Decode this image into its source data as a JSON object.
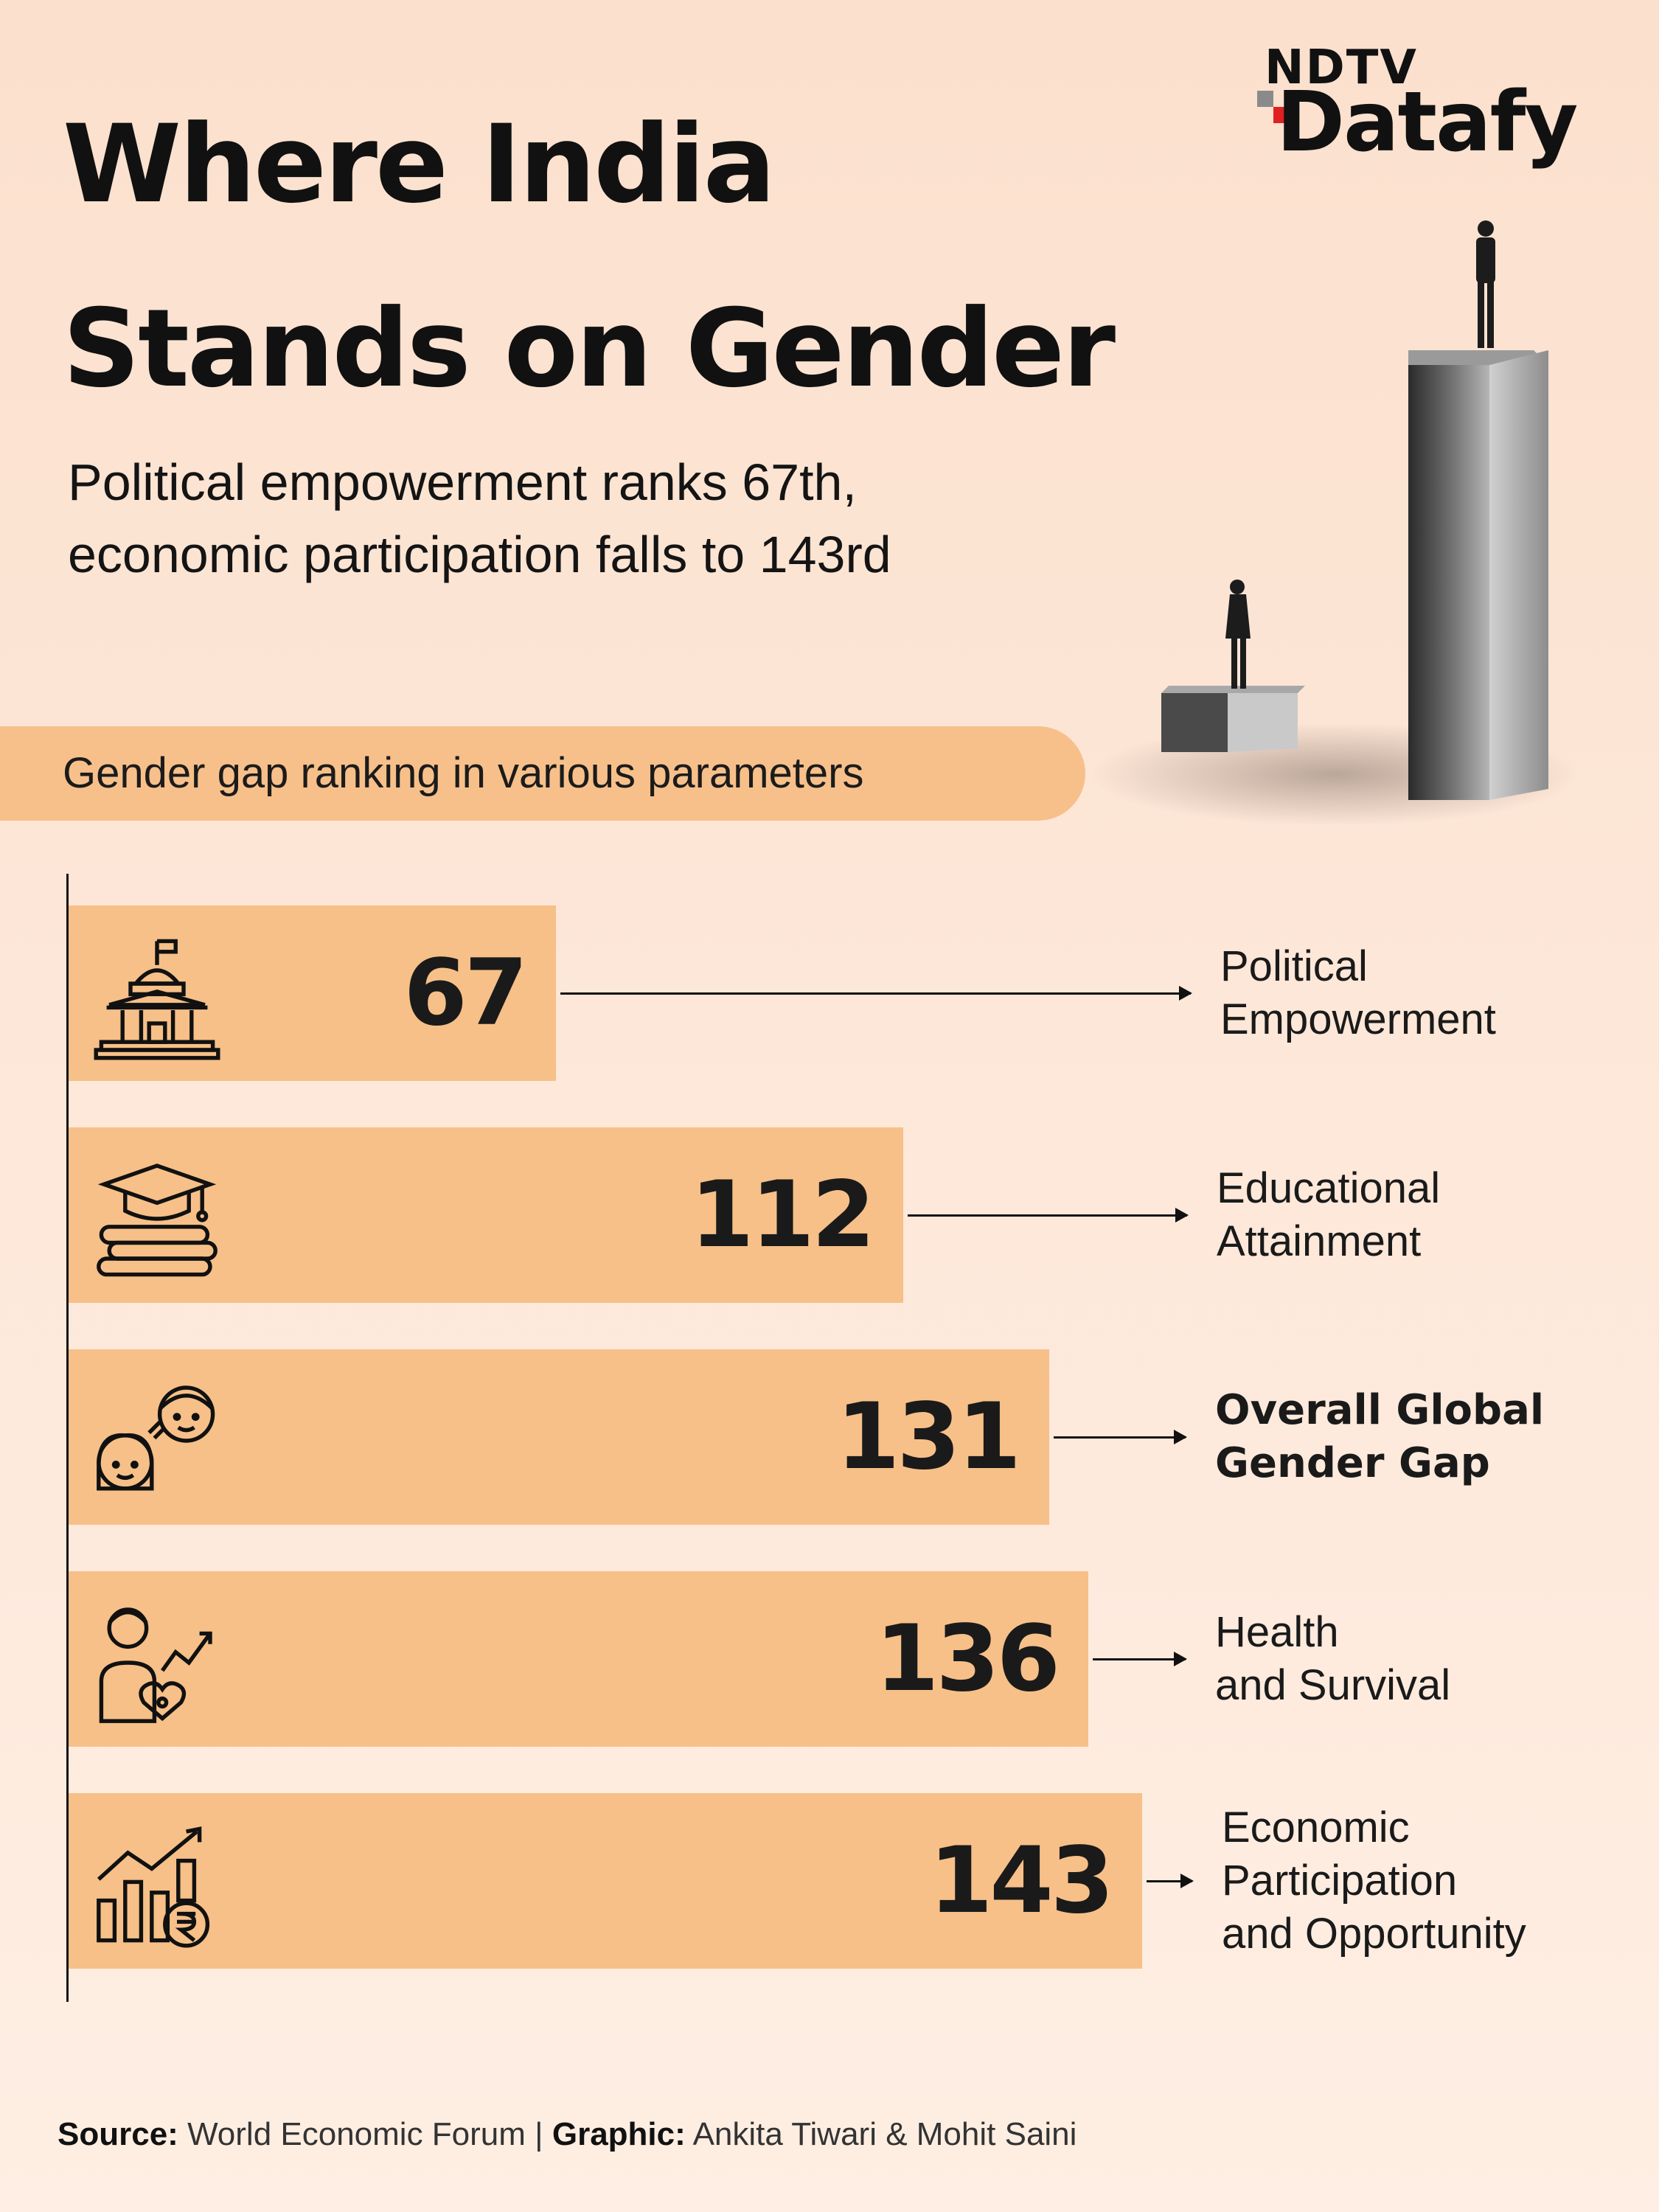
{
  "logo": {
    "top": "NDTV",
    "bottom": "Datafy"
  },
  "title": {
    "line1": "Where India",
    "line2": "Stands on Gender"
  },
  "subtitle": {
    "line1": "Political empowerment ranks 67th,",
    "line2": "economic participation falls to 143rd"
  },
  "section_label": "Gender gap ranking in various parameters",
  "chart_data": {
    "type": "bar",
    "orientation": "horizontal",
    "categories": [
      "Political Empowerment",
      "Educational Attainment",
      "Overall Global Gender Gap",
      "Health and Survival",
      "Economic Participation and Opportunity"
    ],
    "values": [
      67,
      112,
      131,
      136,
      143
    ],
    "bars": [
      {
        "value": "67",
        "label_lines": [
          "Political",
          "Empowerment"
        ],
        "icon": "government-building-icon",
        "bold": false
      },
      {
        "value": "112",
        "label_lines": [
          "Educational",
          "Attainment"
        ],
        "icon": "graduation-cap-books-icon",
        "bold": false
      },
      {
        "value": "131",
        "label_lines": [
          "Overall Global",
          "Gender Gap"
        ],
        "icon": "girl-boy-faces-icon",
        "bold": true
      },
      {
        "value": "136",
        "label_lines": [
          "Health",
          "and Survival"
        ],
        "icon": "person-heart-icon",
        "bold": false
      },
      {
        "value": "143",
        "label_lines": [
          "Economic",
          "Participation",
          "and Opportunity"
        ],
        "icon": "bar-chart-rupee-icon",
        "bold": false
      }
    ],
    "bar_color": "#f6c088"
  },
  "footer": {
    "source_label": "Source:",
    "source": "World Economic Forum",
    "separator": "|",
    "graphic_label": "Graphic:",
    "graphic": "Ankita Tiwari & Mohit Saini"
  },
  "colors": {
    "accent": "#f7c08a",
    "logo_red": "#e02020",
    "text": "#111111"
  }
}
